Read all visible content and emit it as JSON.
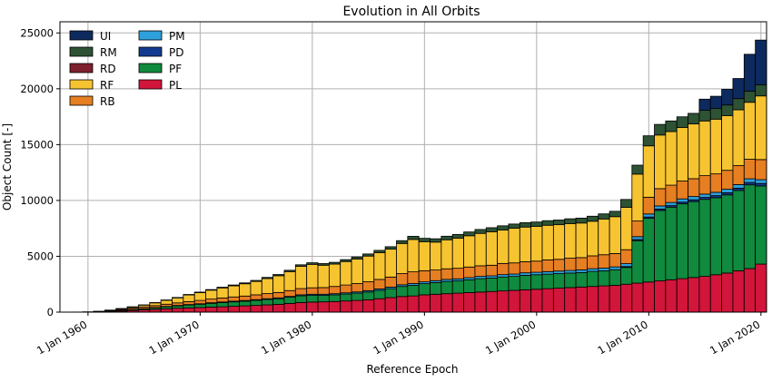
{
  "chart_data": {
    "type": "bar",
    "stacked": true,
    "title": "Evolution in All Orbits",
    "xlabel": "Reference Epoch",
    "ylabel": "Object Count [-]",
    "ylim": [
      0,
      26000
    ],
    "xlim": [
      1957.5,
      2020.5
    ],
    "grid": true,
    "legend_placement": "top-left",
    "yticks": [
      0,
      5000,
      10000,
      15000,
      20000,
      25000
    ],
    "xticks": [
      {
        "year": 1960,
        "label": "1 Jan 1960"
      },
      {
        "year": 1970,
        "label": "1 Jan 1970"
      },
      {
        "year": 1980,
        "label": "1 Jan 1980"
      },
      {
        "year": 1990,
        "label": "1 Jan 1990"
      },
      {
        "year": 2000,
        "label": "1 Jan 2000"
      },
      {
        "year": 2010,
        "label": "1 Jan 2010"
      },
      {
        "year": 2020,
        "label": "1 Jan 2020"
      }
    ],
    "legend_columns": [
      [
        "UI",
        "RM",
        "RD",
        "RF",
        "RB"
      ],
      [
        "PM",
        "PD",
        "PF",
        "PL"
      ]
    ],
    "stack_order": [
      "PL",
      "PF",
      "PD",
      "PM",
      "RB",
      "RF",
      "RD",
      "RM",
      "UI"
    ],
    "colors": {
      "PL": "#d2153a",
      "PF": "#108a3e",
      "PD": "#123b8f",
      "PM": "#2ea0db",
      "RB": "#e67e22",
      "RF": "#f7c431",
      "RD": "#7e1f2e",
      "RM": "#2d5234",
      "UI": "#0d2a5e"
    },
    "years": [
      1958,
      1959,
      1960,
      1961,
      1962,
      1963,
      1964,
      1965,
      1966,
      1967,
      1968,
      1969,
      1970,
      1971,
      1972,
      1973,
      1974,
      1975,
      1976,
      1977,
      1978,
      1979,
      1980,
      1981,
      1982,
      1983,
      1984,
      1985,
      1986,
      1987,
      1988,
      1989,
      1990,
      1991,
      1992,
      1993,
      1994,
      1995,
      1996,
      1997,
      1998,
      1999,
      2000,
      2001,
      2002,
      2003,
      2004,
      2005,
      2006,
      2007,
      2008,
      2009,
      2010,
      2011,
      2012,
      2013,
      2014,
      2015,
      2016,
      2017,
      2018,
      2019,
      2020
    ],
    "series": [
      {
        "name": "PL",
        "values": [
          0,
          5,
          10,
          30,
          60,
          100,
          150,
          200,
          250,
          300,
          350,
          380,
          410,
          450,
          480,
          520,
          560,
          600,
          650,
          700,
          780,
          860,
          900,
          920,
          950,
          1000,
          1050,
          1100,
          1200,
          1300,
          1400,
          1450,
          1550,
          1600,
          1650,
          1700,
          1750,
          1800,
          1850,
          1900,
          1950,
          2000,
          2050,
          2100,
          2150,
          2200,
          2250,
          2300,
          2350,
          2400,
          2500,
          2600,
          2700,
          2800,
          2900,
          3000,
          3100,
          3200,
          3350,
          3500,
          3700,
          3900,
          4300
        ]
      },
      {
        "name": "PF",
        "values": [
          0,
          0,
          5,
          10,
          30,
          50,
          80,
          100,
          140,
          180,
          220,
          260,
          300,
          340,
          380,
          400,
          420,
          450,
          480,
          500,
          550,
          600,
          600,
          580,
          600,
          620,
          650,
          700,
          750,
          800,
          900,
          950,
          1000,
          1050,
          1100,
          1100,
          1150,
          1200,
          1200,
          1250,
          1250,
          1300,
          1300,
          1300,
          1300,
          1300,
          1300,
          1350,
          1350,
          1400,
          1500,
          3800,
          5700,
          6300,
          6500,
          6700,
          6800,
          6900,
          6900,
          7000,
          7200,
          7500,
          7000
        ]
      },
      {
        "name": "PD",
        "values": [
          0,
          0,
          0,
          0,
          0,
          0,
          0,
          0,
          0,
          0,
          0,
          0,
          0,
          0,
          0,
          0,
          0,
          0,
          0,
          0,
          0,
          0,
          0,
          0,
          0,
          0,
          0,
          0,
          0,
          0,
          0,
          0,
          0,
          0,
          0,
          0,
          0,
          0,
          0,
          0,
          0,
          0,
          0,
          0,
          0,
          0,
          0,
          0,
          0,
          0,
          80,
          100,
          120,
          130,
          140,
          150,
          160,
          170,
          180,
          190,
          200,
          210,
          220
        ]
      },
      {
        "name": "PM",
        "values": [
          0,
          0,
          0,
          0,
          5,
          10,
          15,
          20,
          20,
          30,
          30,
          40,
          40,
          50,
          50,
          60,
          60,
          70,
          70,
          80,
          80,
          90,
          100,
          100,
          100,
          110,
          110,
          120,
          130,
          140,
          150,
          160,
          160,
          170,
          180,
          180,
          190,
          200,
          200,
          210,
          210,
          220,
          220,
          230,
          230,
          230,
          230,
          240,
          240,
          250,
          260,
          260,
          270,
          280,
          280,
          290,
          290,
          300,
          300,
          310,
          320,
          330,
          340
        ]
      },
      {
        "name": "RB",
        "values": [
          0,
          5,
          10,
          30,
          60,
          90,
          120,
          150,
          170,
          200,
          230,
          260,
          300,
          330,
          360,
          380,
          400,
          430,
          460,
          480,
          520,
          560,
          580,
          600,
          650,
          700,
          750,
          800,
          850,
          900,
          1000,
          1050,
          1000,
          950,
          950,
          950,
          950,
          950,
          950,
          1000,
          1000,
          1000,
          1000,
          1050,
          1050,
          1100,
          1100,
          1150,
          1200,
          1200,
          1250,
          1400,
          1500,
          1550,
          1550,
          1600,
          1600,
          1650,
          1650,
          1700,
          1700,
          1750,
          1800
        ]
      },
      {
        "name": "RF",
        "values": [
          0,
          0,
          0,
          5,
          20,
          60,
          100,
          160,
          250,
          350,
          450,
          600,
          700,
          800,
          900,
          1000,
          1100,
          1200,
          1350,
          1500,
          1700,
          2000,
          2100,
          2000,
          2000,
          2100,
          2200,
          2300,
          2400,
          2500,
          2700,
          2900,
          2600,
          2500,
          2600,
          2700,
          2800,
          2900,
          3000,
          3000,
          3100,
          3100,
          3100,
          3100,
          3100,
          3100,
          3100,
          3100,
          3200,
          3300,
          3800,
          4200,
          4600,
          4800,
          4800,
          4800,
          4900,
          4900,
          4900,
          4900,
          5000,
          5100,
          5700
        ]
      },
      {
        "name": "RD",
        "values": [
          0,
          0,
          0,
          0,
          0,
          0,
          0,
          0,
          0,
          0,
          0,
          0,
          0,
          0,
          0,
          0,
          0,
          0,
          0,
          0,
          0,
          0,
          0,
          0,
          0,
          0,
          0,
          0,
          0,
          0,
          0,
          0,
          0,
          0,
          0,
          0,
          0,
          0,
          0,
          0,
          0,
          0,
          0,
          0,
          0,
          0,
          0,
          0,
          0,
          0,
          0,
          0,
          0,
          0,
          0,
          0,
          0,
          0,
          0,
          0,
          0,
          0,
          0
        ]
      },
      {
        "name": "RM",
        "values": [
          0,
          0,
          0,
          0,
          5,
          10,
          15,
          20,
          25,
          30,
          35,
          40,
          45,
          50,
          60,
          70,
          80,
          90,
          100,
          110,
          120,
          130,
          140,
          150,
          160,
          170,
          180,
          190,
          200,
          220,
          250,
          280,
          300,
          300,
          320,
          330,
          340,
          350,
          360,
          370,
          380,
          390,
          400,
          410,
          420,
          430,
          440,
          450,
          460,
          480,
          700,
          800,
          900,
          950,
          950,
          950,
          950,
          950,
          950,
          950,
          1000,
          1000,
          1000
        ]
      },
      {
        "name": "UI",
        "values": [
          0,
          0,
          0,
          0,
          0,
          0,
          0,
          0,
          0,
          0,
          0,
          0,
          0,
          0,
          0,
          0,
          0,
          0,
          0,
          0,
          0,
          0,
          0,
          0,
          0,
          0,
          0,
          0,
          0,
          0,
          0,
          0,
          0,
          0,
          0,
          0,
          0,
          0,
          0,
          0,
          0,
          0,
          0,
          0,
          0,
          0,
          0,
          0,
          0,
          0,
          0,
          0,
          0,
          0,
          0,
          0,
          0,
          1000,
          1100,
          1400,
          1800,
          3300,
          4000
        ]
      }
    ]
  }
}
